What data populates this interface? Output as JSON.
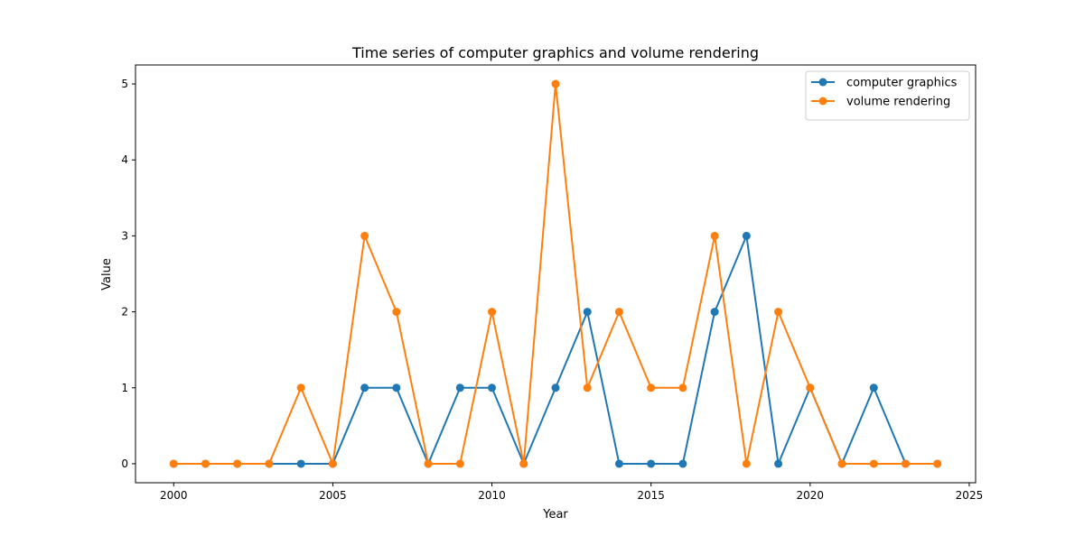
{
  "chart_data": {
    "type": "line",
    "title": "Time series of computer graphics and volume rendering",
    "xlabel": "Year",
    "ylabel": "Value",
    "xlim": [
      1998.8,
      2025.2
    ],
    "ylim": [
      -0.25,
      5.25
    ],
    "xticks": [
      2000,
      2005,
      2010,
      2015,
      2020,
      2025
    ],
    "yticks": [
      0,
      1,
      2,
      3,
      4,
      5
    ],
    "grid": false,
    "legend_position": "top-right",
    "x": [
      2000,
      2001,
      2002,
      2003,
      2004,
      2005,
      2006,
      2007,
      2008,
      2009,
      2010,
      2011,
      2012,
      2013,
      2014,
      2015,
      2016,
      2017,
      2018,
      2019,
      2020,
      2021,
      2022,
      2023,
      2024
    ],
    "series": [
      {
        "name": "computer graphics",
        "color": "#1f77b4",
        "marker": "circle",
        "values": [
          0,
          0,
          0,
          0,
          0,
          0,
          1,
          1,
          0,
          1,
          1,
          0,
          1,
          2,
          0,
          0,
          0,
          2,
          3,
          0,
          1,
          0,
          1,
          0,
          0
        ]
      },
      {
        "name": "volume rendering",
        "color": "#ff7f0e",
        "marker": "circle",
        "values": [
          0,
          0,
          0,
          0,
          1,
          0,
          3,
          2,
          0,
          0,
          2,
          0,
          5,
          1,
          2,
          1,
          1,
          3,
          0,
          2,
          1,
          0,
          0,
          0,
          0
        ]
      }
    ]
  }
}
